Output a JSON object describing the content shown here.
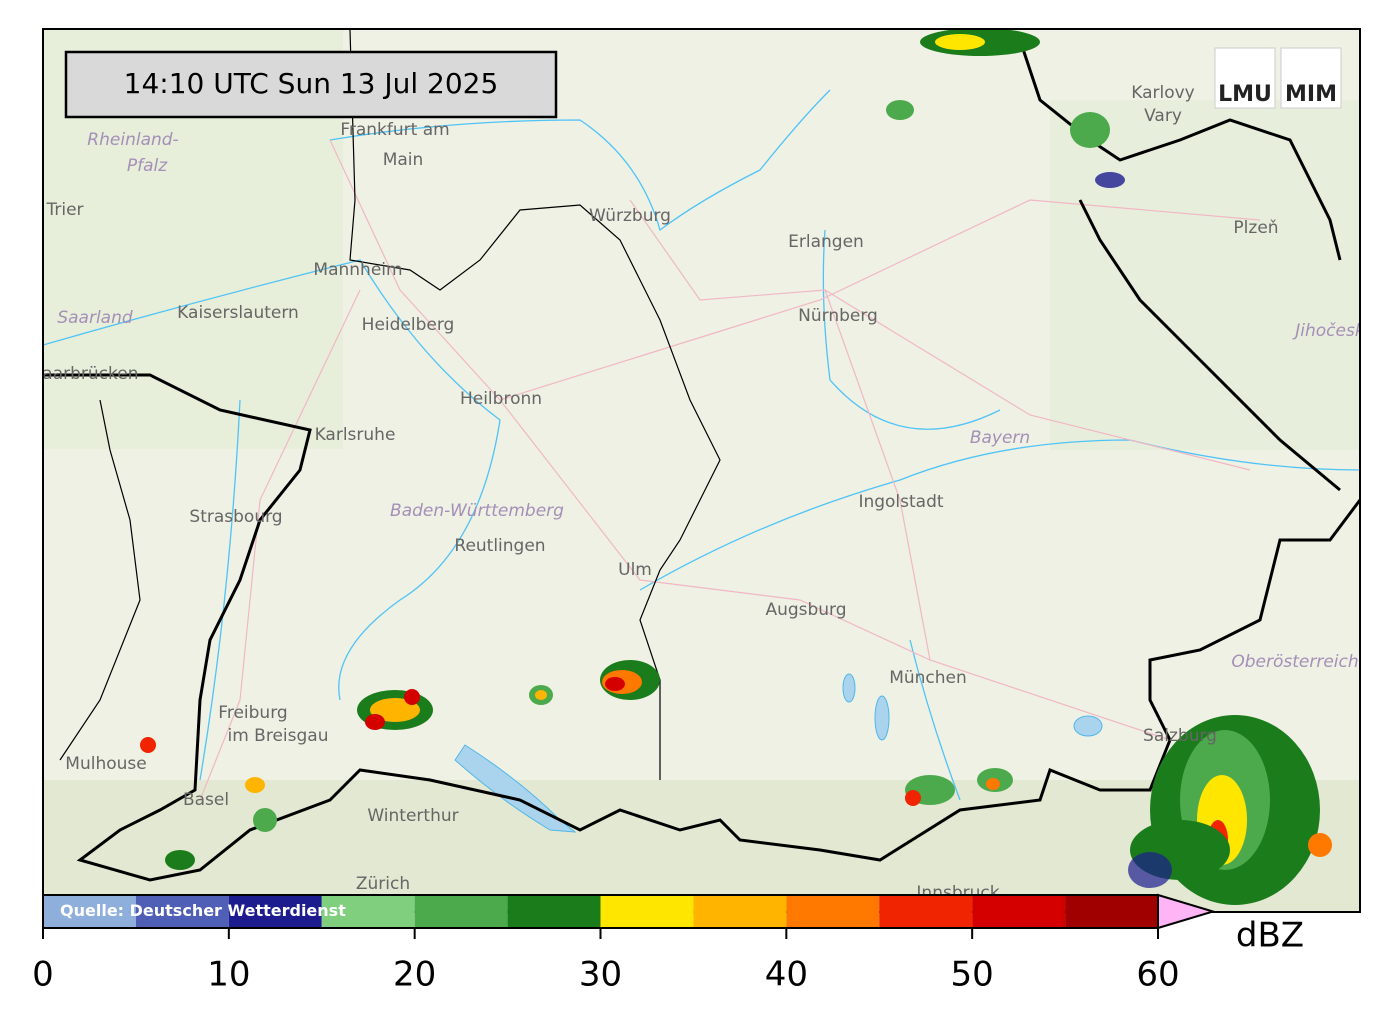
{
  "header": {
    "timestamp": "14:10 UTC  Sun 13 Jul 2025"
  },
  "logos": [
    "LMU",
    "MIM"
  ],
  "places": [
    "Frankfurt am",
    "Main",
    "Trier",
    "Würzburg",
    "Erlangen",
    "Nürnberg",
    "Karlovy",
    "Vary",
    "Plzeň",
    "Mannheim",
    "Kaiserslautern",
    "Heidelberg",
    "Saarbrücken",
    "Heilbronn",
    "Karlsruhe",
    "Strasbourg",
    "Reutlingen",
    "Ingolstadt",
    "Ulm",
    "Augsburg",
    "München",
    "Freiburg",
    "im Breisgau",
    "Mulhouse",
    "Basel",
    "Winterthur",
    "Zürich",
    "Salzburg",
    "Innsbruck"
  ],
  "regions": [
    "Rheinland-",
    "Pfalz",
    "Saarland",
    "Bayern",
    "Baden-Württemberg",
    "Oberösterreich",
    "Jihočeský"
  ],
  "colorbar": {
    "unit": "dBZ",
    "source": "Quelle: Deutscher Wetterdienst",
    "bounds": [
      0,
      5,
      10,
      15,
      20,
      25,
      30,
      35,
      40,
      45,
      50,
      55,
      60
    ],
    "colors": [
      "#8eaedb",
      "#4f5fb5",
      "#1c1c8e",
      "#7fcf7f",
      "#4caa4c",
      "#1b7c1b",
      "#ffe600",
      "#ffb400",
      "#ff7800",
      "#f02400",
      "#d40000",
      "#a00000"
    ],
    "extend_color": "#ffb4f5",
    "lim": [
      0,
      60
    ],
    "ticks": [
      0,
      10,
      20,
      30,
      40,
      50,
      60
    ]
  }
}
